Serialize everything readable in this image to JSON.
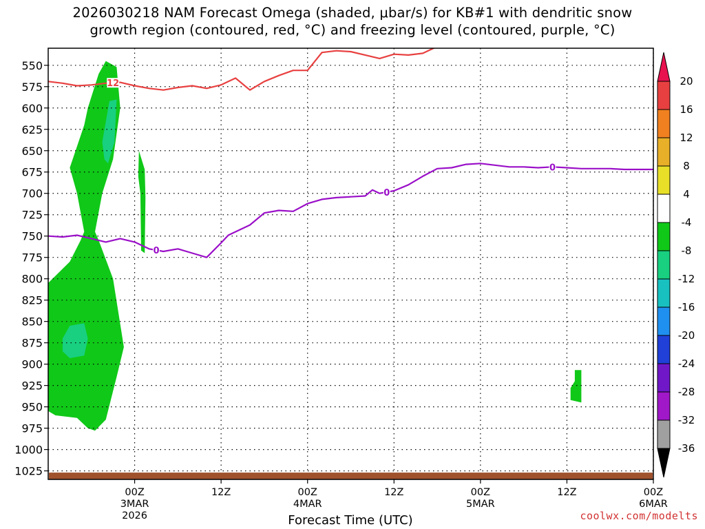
{
  "title": "2026030218 NAM Forecast Omega (shaded, μbar/s) for KB#1 with dendritic snow\ngrowth region (contoured, red, °C) and freezing level (contoured, purple, °C)",
  "credit": "coolwx.com/modelts",
  "chart_data": {
    "type": "time-height cross section",
    "title": "2026030218 NAM Forecast Omega (shaded, μbar/s) for KB#1 with dendritic snow growth region (contoured, red, °C) and freezing level (contoured, purple, °C)",
    "xlabel": "Forecast Time (UTC)",
    "ylabel": "",
    "y_axis": {
      "reversed": true,
      "range": [
        530,
        1035
      ],
      "ticks": [
        550,
        575,
        600,
        625,
        650,
        675,
        700,
        725,
        750,
        775,
        800,
        825,
        850,
        875,
        900,
        925,
        950,
        975,
        1000,
        1025
      ]
    },
    "x_axis": {
      "range_hours": [
        -6,
        78
      ],
      "ticks": [
        {
          "hour": 6,
          "label": "00Z",
          "date": "3MAR",
          "year": "2026"
        },
        {
          "hour": 18,
          "label": "12Z"
        },
        {
          "hour": 30,
          "label": "00Z",
          "date": "4MAR"
        },
        {
          "hour": 42,
          "label": "12Z"
        },
        {
          "hour": 54,
          "label": "00Z",
          "date": "5MAR"
        },
        {
          "hour": 66,
          "label": "12Z"
        },
        {
          "hour": 78,
          "label": "00Z",
          "date": "6MAR"
        }
      ]
    },
    "grid": true,
    "colorbar": {
      "labels": [
        20,
        16,
        12,
        8,
        4,
        -4,
        -8,
        -12,
        -16,
        -20,
        -24,
        -28,
        -32,
        -36
      ],
      "colors": [
        "#e8124e",
        "#e84040",
        "#f08020",
        "#e8b028",
        "#e8e028",
        "#ffffff",
        "#10c818",
        "#18d080",
        "#18c0c0",
        "#2090f0",
        "#2040d8",
        "#7018c8",
        "#a018c8",
        "#a0a0a0",
        "#000000"
      ]
    },
    "series": [
      {
        "name": "freezing level 0°C",
        "contour_label": "0",
        "color": "#9a0fc8",
        "x_hours": [
          -6,
          -4,
          -2,
          0,
          2,
          4,
          6,
          8,
          10,
          12,
          14,
          16,
          18,
          19,
          20,
          22,
          24,
          26,
          28,
          30,
          32,
          34,
          36,
          38,
          39,
          40,
          42,
          44,
          46,
          48,
          50,
          52,
          54,
          56,
          58,
          60,
          62,
          64,
          66,
          68,
          70,
          72,
          74,
          76,
          78
        ],
        "y_hpa": [
          750,
          751,
          749,
          753,
          757,
          753,
          757,
          765,
          768,
          765,
          770,
          775,
          758,
          749,
          745,
          737,
          723,
          720,
          721,
          712,
          707,
          705,
          704,
          703,
          696,
          700,
          697,
          690,
          680,
          671,
          670,
          666,
          665,
          667,
          669,
          669,
          670,
          669,
          670,
          671,
          671,
          671,
          672,
          672,
          672
        ]
      },
      {
        "name": "dendritic growth region -12°C",
        "contour_label": "12",
        "color": "#e84040",
        "x_hours": [
          -6,
          -4,
          -2,
          0,
          2,
          4,
          6,
          8,
          10,
          12,
          14,
          16,
          18,
          20,
          22,
          24,
          26,
          28,
          30,
          32,
          34,
          36,
          38,
          40,
          42,
          44,
          46,
          48,
          50
        ],
        "y_hpa": [
          569,
          571,
          574,
          573,
          571,
          570,
          574,
          577,
          579,
          576,
          574,
          577,
          573,
          565,
          579,
          569,
          562,
          556,
          556,
          535,
          533,
          534,
          538,
          542,
          537,
          538,
          536,
          528,
          529
        ]
      }
    ],
    "shaded_regions": [
      {
        "omega_bin": "-8 to -4",
        "description": "ascent column",
        "x_hours": [
          -6,
          2
        ],
        "y_hpa": [
          545,
          975
        ]
      },
      {
        "omega_bin": "-12 to -8",
        "description": "core",
        "x_hours": [
          -5,
          0
        ],
        "y_hpa": [
          580,
          895
        ]
      },
      {
        "omega_bin": "-8 to -4",
        "description": "narrow strip",
        "x_hours": [
          6.5,
          7.5
        ],
        "y_hpa": [
          650,
          770
        ]
      },
      {
        "omega_bin": "-8 to -4",
        "description": "small patch",
        "x_hours": [
          66.5,
          68
        ],
        "y_hpa": [
          905,
          945
        ]
      }
    ],
    "terrain_surface_hpa": 1027
  }
}
